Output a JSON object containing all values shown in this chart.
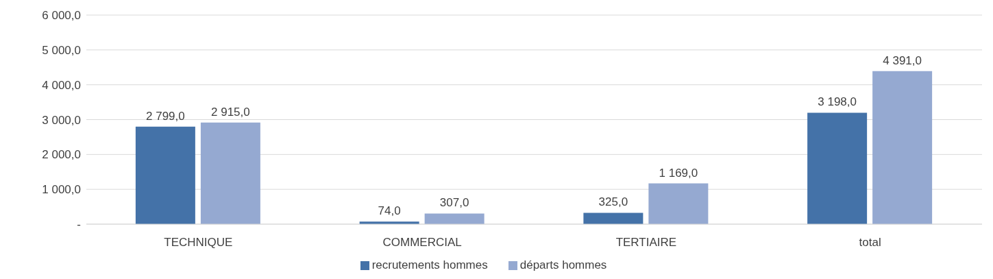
{
  "chart_data": {
    "type": "bar",
    "categories": [
      "TECHNIQUE",
      "COMMERCIAL",
      "TERTIAIRE",
      "total"
    ],
    "series": [
      {
        "name": "recrutements hommes",
        "color": "#4472a8",
        "values": [
          2799,
          74,
          325,
          3198
        ],
        "value_labels": [
          "2 799,0",
          "74,0",
          "325,0",
          "3 198,0"
        ]
      },
      {
        "name": "départs hommes",
        "color": "#95a9d1",
        "values": [
          2915,
          307,
          1169,
          4391
        ],
        "value_labels": [
          "2 915,0",
          "307,0",
          "1 169,0",
          "4 391,0"
        ]
      }
    ],
    "ylim": [
      0,
      6000
    ],
    "yticks": [
      {
        "value": 0,
        "label": "-"
      },
      {
        "value": 1000,
        "label": "1 000,0"
      },
      {
        "value": 2000,
        "label": "2 000,0"
      },
      {
        "value": 3000,
        "label": "3 000,0"
      },
      {
        "value": 4000,
        "label": "4 000,0"
      },
      {
        "value": 5000,
        "label": "5 000,0"
      },
      {
        "value": 6000,
        "label": "6 000,0"
      }
    ],
    "grid": "y",
    "legend": "bottom"
  }
}
